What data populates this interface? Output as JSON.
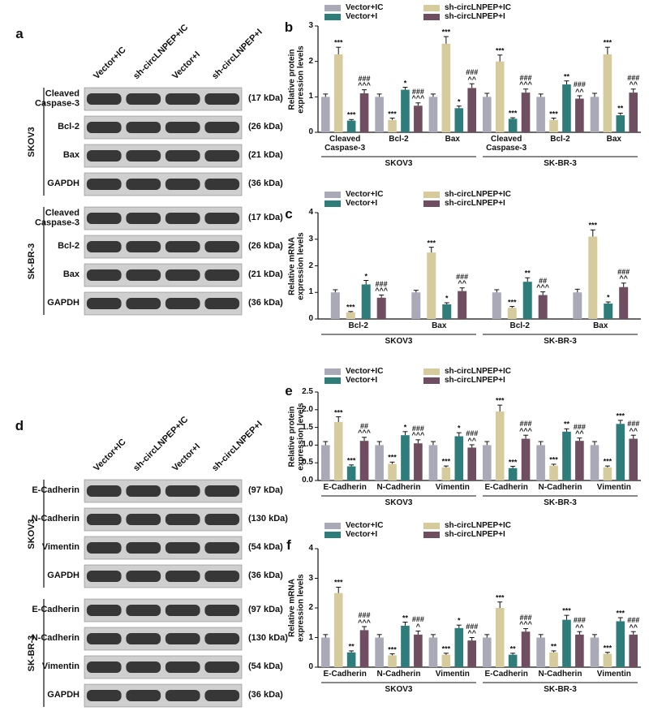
{
  "chart_data": [
    {
      "type": "bar",
      "panel": "b",
      "ylabel": "Relative protein\nexpression levels",
      "categories": [
        "Cleaved\nCaspase-3",
        "Bcl-2",
        "Bax",
        "Cleaved\nCaspase-3",
        "Bcl-2",
        "Bax"
      ],
      "groups": [
        "SKOV3",
        "SK-BR-3"
      ],
      "ylim": [
        0,
        3
      ],
      "yticks": [
        0,
        1,
        2,
        3
      ],
      "series": [
        {
          "name": "Vector+IC",
          "color": "#a9a9b8",
          "values": [
            1.0,
            1.0,
            1.0,
            1.0,
            1.0,
            1.0
          ],
          "errors": [
            0.08,
            0.08,
            0.08,
            0.1,
            0.08,
            0.1
          ]
        },
        {
          "name": "sh-circLNPEP+IC",
          "color": "#d6cb9c",
          "values": [
            2.2,
            0.35,
            2.5,
            2.0,
            0.35,
            2.2
          ],
          "errors": [
            0.2,
            0.05,
            0.2,
            0.18,
            0.05,
            0.2
          ],
          "annotations": [
            "***",
            "***",
            "***",
            "***",
            "***",
            "***"
          ]
        },
        {
          "name": "Vector+I",
          "color": "#2f7d7b",
          "values": [
            0.33,
            1.2,
            0.68,
            0.38,
            1.35,
            0.48
          ],
          "errors": [
            0.03,
            0.07,
            0.06,
            0.03,
            0.1,
            0.06
          ],
          "annotations": [
            "***",
            "*",
            "*",
            "***",
            "**",
            "**"
          ]
        },
        {
          "name": "sh-circLNPEP+I",
          "color": "#6e4e60",
          "values": [
            1.1,
            0.75,
            1.25,
            1.12,
            0.95,
            1.12
          ],
          "errors": [
            0.1,
            0.08,
            0.12,
            0.1,
            0.08,
            0.1
          ],
          "annotations": [
            "###\n^^^",
            "###\n^^^",
            "###\n^^",
            "###\n^^^",
            "###\n^^",
            "###\n^^"
          ]
        }
      ]
    },
    {
      "type": "bar",
      "panel": "c",
      "ylabel": "Relative mRNA\nexpression levels",
      "categories": [
        "Bcl-2",
        "Bax",
        "Bcl-2",
        "Bax"
      ],
      "groups": [
        "SKOV3",
        "SK-BR-3"
      ],
      "ylim": [
        0,
        4
      ],
      "yticks": [
        0,
        1,
        2,
        3,
        4
      ],
      "series": [
        {
          "name": "Vector+IC",
          "color": "#a9a9b8",
          "values": [
            1.0,
            1.0,
            1.0,
            1.0
          ],
          "errors": [
            0.1,
            0.08,
            0.1,
            0.12
          ]
        },
        {
          "name": "sh-circLNPEP+IC",
          "color": "#d6cb9c",
          "values": [
            0.25,
            2.5,
            0.42,
            3.1
          ],
          "errors": [
            0.03,
            0.2,
            0.05,
            0.25
          ],
          "annotations": [
            "***",
            "***",
            "***",
            "***"
          ]
        },
        {
          "name": "Vector+I",
          "color": "#2f7d7b",
          "values": [
            1.3,
            0.55,
            1.4,
            0.58
          ],
          "errors": [
            0.15,
            0.06,
            0.15,
            0.06
          ],
          "annotations": [
            "*",
            "*",
            "**",
            "*"
          ]
        },
        {
          "name": "sh-circLNPEP+I",
          "color": "#6e4e60",
          "values": [
            0.8,
            1.05,
            0.9,
            1.2
          ],
          "errors": [
            0.1,
            0.12,
            0.12,
            0.15
          ],
          "annotations": [
            "###\n^^^",
            "###\n^^",
            "##\n^^^",
            "###\n^^"
          ]
        }
      ]
    },
    {
      "type": "bar",
      "panel": "e",
      "ylabel": "Relative protein\nexpression levels",
      "categories": [
        "E-Cadherin",
        "N-Cadherin",
        "Vimentin",
        "E-Cadherin",
        "N-Cadherin",
        "Vimentin"
      ],
      "groups": [
        "SKOV3",
        "SK-BR-3"
      ],
      "ylim": [
        0,
        2.5
      ],
      "yticks": [
        {
          "value": 0,
          "label": "0.0"
        },
        0.5,
        {
          "value": 1,
          "label": "1.0"
        },
        1.5,
        {
          "value": 2,
          "label": "2.0"
        },
        2.5
      ],
      "series": [
        {
          "name": "Vector+IC",
          "color": "#a9a9b8",
          "values": [
            1.0,
            1.0,
            1.0,
            1.0,
            1.0,
            1.0
          ],
          "errors": [
            0.1,
            0.1,
            0.1,
            0.1,
            0.1,
            0.1
          ]
        },
        {
          "name": "sh-circLNPEP+IC",
          "color": "#d6cb9c",
          "values": [
            1.65,
            0.47,
            0.37,
            1.95,
            0.42,
            0.37
          ],
          "errors": [
            0.15,
            0.05,
            0.04,
            0.18,
            0.04,
            0.04
          ],
          "annotations": [
            "***",
            "***",
            "***",
            "***",
            "***",
            "***"
          ]
        },
        {
          "name": "Vector+I",
          "color": "#2f7d7b",
          "values": [
            0.4,
            1.28,
            1.25,
            0.35,
            1.38,
            1.6
          ],
          "errors": [
            0.04,
            0.1,
            0.1,
            0.05,
            0.08,
            0.1
          ],
          "annotations": [
            "***",
            "*",
            "*",
            "***",
            "**",
            "***"
          ]
        },
        {
          "name": "sh-circLNPEP+I",
          "color": "#6e4e60",
          "values": [
            1.12,
            1.05,
            0.93,
            1.18,
            1.12,
            1.18
          ],
          "errors": [
            0.1,
            0.1,
            0.08,
            0.1,
            0.08,
            0.1
          ],
          "annotations": [
            "##\n^^^",
            "###\n^^^",
            "###\n^^",
            "###\n^^^",
            "###\n^^",
            "###\n^^"
          ]
        }
      ]
    },
    {
      "type": "bar",
      "panel": "f",
      "ylabel": "Relative mRNA\nexpression levels",
      "categories": [
        "E-Cadherin",
        "N-Cadherin",
        "Vimentin",
        "E-Cadherin",
        "N-Cadherin",
        "Vimentin"
      ],
      "groups": [
        "SKOV3",
        "SK-BR-3"
      ],
      "ylim": [
        0,
        4
      ],
      "yticks": [
        0,
        1,
        2,
        3,
        4
      ],
      "series": [
        {
          "name": "Vector+IC",
          "color": "#a9a9b8",
          "values": [
            1.0,
            1.0,
            1.0,
            1.0,
            1.0,
            1.0
          ],
          "errors": [
            0.1,
            0.1,
            0.1,
            0.1,
            0.1,
            0.1
          ]
        },
        {
          "name": "sh-circLNPEP+IC",
          "color": "#d6cb9c",
          "values": [
            2.5,
            0.4,
            0.42,
            2.0,
            0.5,
            0.45
          ],
          "errors": [
            0.2,
            0.05,
            0.05,
            0.2,
            0.05,
            0.05
          ],
          "annotations": [
            "***",
            "***",
            "***",
            "***",
            "**",
            "***"
          ]
        },
        {
          "name": "Vector+I",
          "color": "#2f7d7b",
          "values": [
            0.5,
            1.4,
            1.32,
            0.42,
            1.6,
            1.55
          ],
          "errors": [
            0.05,
            0.12,
            0.1,
            0.05,
            0.15,
            0.12
          ],
          "annotations": [
            "**",
            "**",
            "*",
            "**",
            "***",
            "***"
          ]
        },
        {
          "name": "sh-circLNPEP+I",
          "color": "#6e4e60",
          "values": [
            1.25,
            1.1,
            0.9,
            1.2,
            1.1,
            1.1
          ],
          "errors": [
            0.12,
            0.12,
            0.1,
            0.1,
            0.1,
            0.1
          ],
          "annotations": [
            "###\n^^^",
            "###\n^",
            "###\n^^",
            "###\n^^^",
            "###\n^^",
            "###\n^^"
          ]
        }
      ]
    }
  ],
  "blots": [
    {
      "panel": "a",
      "lanes": [
        "Vector+IC",
        "sh-circLNPEP+IC",
        "Vector+I",
        "sh-circLNPEP+I"
      ],
      "cell_lines": [
        {
          "name": "SKOV3",
          "rows": [
            {
              "protein": "Cleaved\nCaspase-3",
              "size": "(17 kDa)"
            },
            {
              "protein": "Bcl-2",
              "size": "(26 kDa)"
            },
            {
              "protein": "Bax",
              "size": "(21 kDa)"
            },
            {
              "protein": "GAPDH",
              "size": "(36 kDa)"
            }
          ]
        },
        {
          "name": "SK-BR-3",
          "rows": [
            {
              "protein": "Cleaved\nCaspase-3",
              "size": "(17 kDa)"
            },
            {
              "protein": "Bcl-2",
              "size": "(26 kDa)"
            },
            {
              "protein": "Bax",
              "size": "(21 kDa)"
            },
            {
              "protein": "GAPDH",
              "size": "(36 kDa)"
            }
          ]
        }
      ]
    },
    {
      "panel": "d",
      "lanes": [
        "Vector+IC",
        "sh-circLNPEP+IC",
        "Vector+I",
        "sh-circLNPEP+I"
      ],
      "cell_lines": [
        {
          "name": "SKOV3",
          "rows": [
            {
              "protein": "E-Cadherin",
              "size": "(97 kDa)"
            },
            {
              "protein": "N-Cadherin",
              "size": "(130 kDa)"
            },
            {
              "protein": "Vimentin",
              "size": "(54 kDa)"
            },
            {
              "protein": "GAPDH",
              "size": "(36 kDa)"
            }
          ]
        },
        {
          "name": "SK-BR-3",
          "rows": [
            {
              "protein": "E-Cadherin",
              "size": "(97 kDa)"
            },
            {
              "protein": "N-Cadherin",
              "size": "(130 kDa)"
            },
            {
              "protein": "Vimentin",
              "size": "(54 kDa)"
            },
            {
              "protein": "GAPDH",
              "size": "(36 kDa)"
            }
          ]
        }
      ]
    }
  ]
}
